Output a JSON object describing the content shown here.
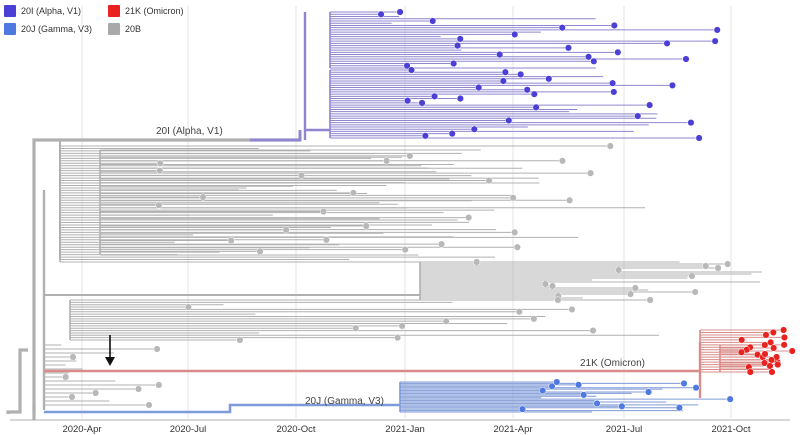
{
  "legend": [
    {
      "label": "20I (Alpha, V1)",
      "color": "#4b3fd6"
    },
    {
      "label": "20J (Gamma, V3)",
      "color": "#4f79e0"
    },
    {
      "label": "21K (Omicron)",
      "color": "#e8231f"
    },
    {
      "label": "20B",
      "color": "#a9a9a9"
    }
  ],
  "clade_labels": {
    "alpha": "20I (Alpha, V1)",
    "omicron": "21K (Omicron)",
    "gamma": "20J (Gamma, V3)"
  },
  "axis": {
    "ticks": [
      "2020-Apr",
      "2020-Jul",
      "2020-Oct",
      "2021-Jan",
      "2021-Apr",
      "2021-Jul",
      "2021-Oct"
    ]
  },
  "colors": {
    "grey_branch": "#b0b0b0",
    "grey_tip": "#b8b8b8",
    "alpha_branch": "#8f86cf",
    "alpha_tip": "#4b3fd6",
    "gamma_branch": "#7f9ad8",
    "gamma_tip": "#4f79e0",
    "omicron_branch": "#d88c88",
    "omicron_tip": "#e8231f",
    "grid": "#e6e6e6"
  }
}
